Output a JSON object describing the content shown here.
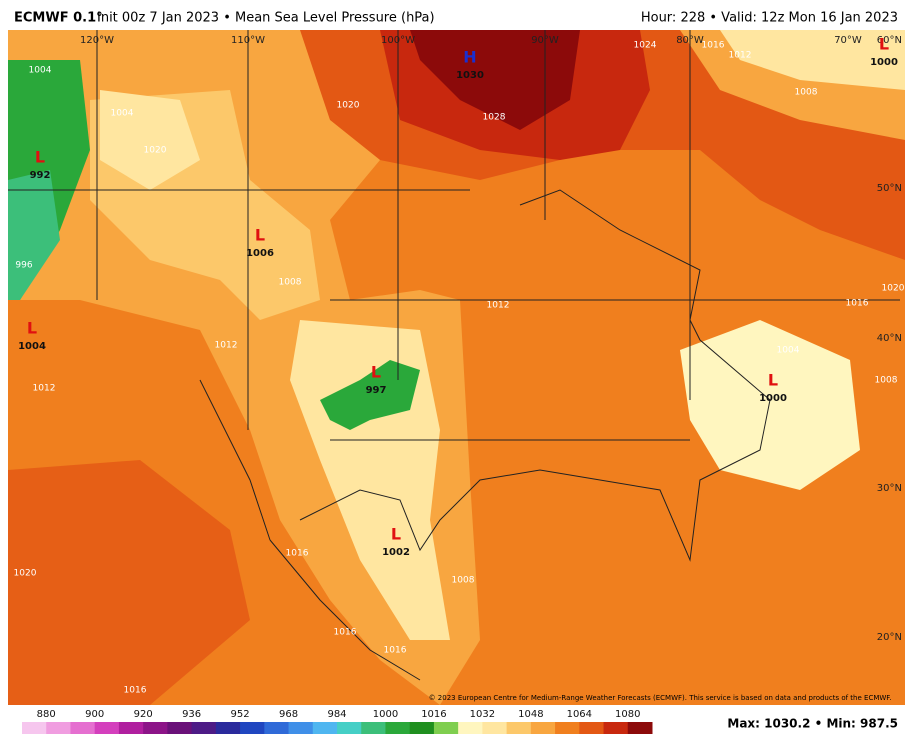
{
  "header": {
    "model": "ECMWF 0.1°",
    "title": "Init 00z 7 Jan 2023 • Mean Sea Level Pressure (hPa)",
    "valid": "Hour: 228 • Valid: 12z Mon 16 Jan 2023"
  },
  "map": {
    "longitudes": [
      "120°W",
      "110°W",
      "100°W",
      "90°W",
      "80°W",
      "70°W"
    ],
    "latitudes": [
      "60°N",
      "50°N",
      "40°N",
      "30°N",
      "20°N"
    ],
    "systems": [
      {
        "symbol": "H",
        "value": 1030
      },
      {
        "symbol": "L",
        "value": 992
      },
      {
        "symbol": "L",
        "value": 1006
      },
      {
        "symbol": "L",
        "value": 1004
      },
      {
        "symbol": "L",
        "value": 997
      },
      {
        "symbol": "L",
        "value": 1002
      },
      {
        "symbol": "L",
        "value": 1000
      },
      {
        "symbol": "L",
        "value": 1000
      }
    ],
    "isobar_labels": [
      1004,
      1004,
      1020,
      1020,
      1028,
      1024,
      1016,
      1012,
      1008,
      996,
      1008,
      1012,
      1012,
      1012,
      1004,
      1008,
      1016,
      1020,
      1016,
      1008,
      1020,
      1016,
      1016,
      1016
    ],
    "credit": "© 2023 European Centre for Medium-Range Weather Forecasts (ECMWF). This service is based on data and products of the ECMWF."
  },
  "colorbar": {
    "labels": [
      880,
      900,
      920,
      936,
      952,
      968,
      984,
      1000,
      1016,
      1032,
      1048,
      1064,
      1080
    ],
    "colors": [
      "#f6c6ee",
      "#f09de0",
      "#e56fd0",
      "#d43fbd",
      "#b01f9f",
      "#8c1488",
      "#6a1179",
      "#4d1b86",
      "#2a2a9c",
      "#2046c0",
      "#2f6ad8",
      "#3f8fe8",
      "#4fb6f0",
      "#45cfc6",
      "#3cbf7a",
      "#2aa83a",
      "#1f8f1f",
      "#7fce4f",
      "#fff6bf",
      "#ffe6a0",
      "#fcc86a",
      "#f8a640",
      "#f07f1e",
      "#e35814",
      "#c8280e",
      "#8c0a0a"
    ]
  },
  "footer": {
    "stats": "Max: 1030.2 • Min: 987.5"
  }
}
